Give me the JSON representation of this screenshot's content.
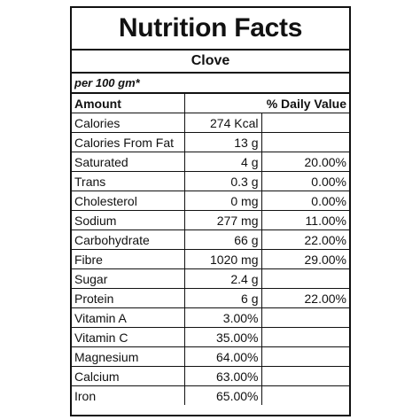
{
  "label": {
    "title": "Nutrition Facts",
    "product": "Clove",
    "serving": "per 100 gm*",
    "header_amount": "Amount",
    "header_dv": "% Daily Value",
    "rows": [
      {
        "name": "Calories",
        "amount": "274 Kcal",
        "dv": ""
      },
      {
        "name": "Calories From Fat",
        "amount": "13 g",
        "dv": ""
      },
      {
        "name": "Saturated",
        "amount": "4 g",
        "dv": "20.00%"
      },
      {
        "name": "Trans",
        "amount": "0.3 g",
        "dv": "0.00%"
      },
      {
        "name": "Cholesterol",
        "amount": "0 mg",
        "dv": "0.00%"
      },
      {
        "name": "Sodium",
        "amount": "277 mg",
        "dv": "11.00%"
      },
      {
        "name": "Carbohydrate",
        "amount": "66 g",
        "dv": "22.00%"
      },
      {
        "name": "Fibre",
        "amount": "1020 mg",
        "dv": "29.00%"
      },
      {
        "name": "Sugar",
        "amount": "2.4 g",
        "dv": ""
      },
      {
        "name": "Protein",
        "amount": "6 g",
        "dv": "22.00%"
      },
      {
        "name": "Vitamin A",
        "amount": "3.00%",
        "dv": ""
      },
      {
        "name": "Vitamin C",
        "amount": "35.00%",
        "dv": ""
      },
      {
        "name": "Magnesium",
        "amount": "64.00%",
        "dv": ""
      },
      {
        "name": "Calcium",
        "amount": "63.00%",
        "dv": ""
      },
      {
        "name": "Iron",
        "amount": "65.00%",
        "dv": ""
      }
    ]
  }
}
